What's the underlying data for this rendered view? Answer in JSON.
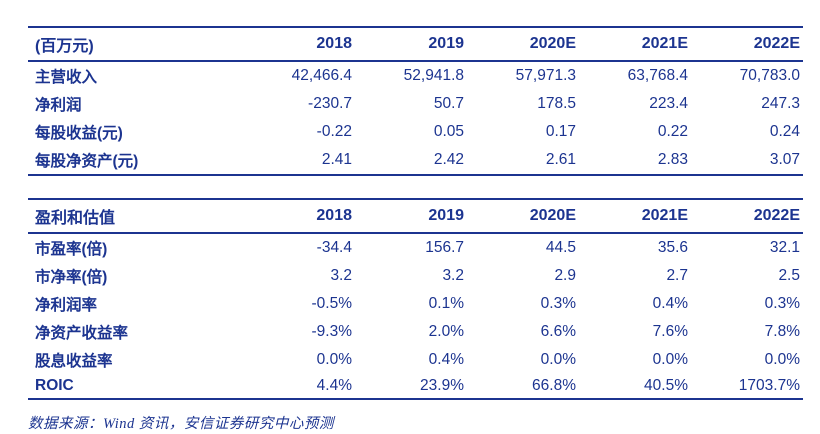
{
  "colors": {
    "navy": "#1c3490",
    "background": "#ffffff"
  },
  "income_table": {
    "header": [
      "(百万元)",
      "2018",
      "2019",
      "2020E",
      "2021E",
      "2022E"
    ],
    "rows": [
      {
        "label": "主营收入",
        "values": [
          "42,466.4",
          "52,941.8",
          "57,971.3",
          "63,768.4",
          "70,783.0"
        ]
      },
      {
        "label": "净利润",
        "values": [
          "-230.7",
          "50.7",
          "178.5",
          "223.4",
          "247.3"
        ]
      },
      {
        "label": "每股收益(元)",
        "values": [
          "-0.22",
          "0.05",
          "0.17",
          "0.22",
          "0.24"
        ]
      },
      {
        "label": "每股净资产(元)",
        "values": [
          "2.41",
          "2.42",
          "2.61",
          "2.83",
          "3.07"
        ]
      }
    ]
  },
  "valuation_table": {
    "header": [
      "盈利和估值",
      "2018",
      "2019",
      "2020E",
      "2021E",
      "2022E"
    ],
    "rows": [
      {
        "label": "市盈率(倍)",
        "values": [
          "-34.4",
          "156.7",
          "44.5",
          "35.6",
          "32.1"
        ]
      },
      {
        "label": "市净率(倍)",
        "values": [
          "3.2",
          "3.2",
          "2.9",
          "2.7",
          "2.5"
        ]
      },
      {
        "label": "净利润率",
        "values": [
          "-0.5%",
          "0.1%",
          "0.3%",
          "0.4%",
          "0.3%"
        ]
      },
      {
        "label": "净资产收益率",
        "values": [
          "-9.3%",
          "2.0%",
          "6.6%",
          "7.6%",
          "7.8%"
        ]
      },
      {
        "label": "股息收益率",
        "values": [
          "0.0%",
          "0.4%",
          "0.0%",
          "0.0%",
          "0.0%"
        ]
      },
      {
        "label": "ROIC",
        "values": [
          "4.4%",
          "23.9%",
          "66.8%",
          "40.5%",
          "1703.7%"
        ]
      }
    ]
  },
  "footer": {
    "source_note": "数据来源：Wind 资讯，安信证券研究中心预测"
  }
}
